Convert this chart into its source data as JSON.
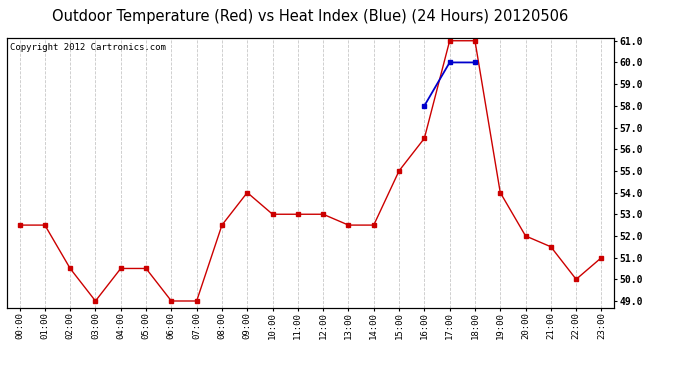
{
  "title": "Outdoor Temperature (Red) vs Heat Index (Blue) (24 Hours) 20120506",
  "copyright": "Copyright 2012 Cartronics.com",
  "x_labels": [
    "00:00",
    "01:00",
    "02:00",
    "03:00",
    "04:00",
    "05:00",
    "06:00",
    "07:00",
    "08:00",
    "09:00",
    "10:00",
    "11:00",
    "12:00",
    "13:00",
    "14:00",
    "15:00",
    "16:00",
    "17:00",
    "18:00",
    "19:00",
    "20:00",
    "21:00",
    "22:00",
    "23:00"
  ],
  "temp_red": [
    52.5,
    52.5,
    50.5,
    49.0,
    50.5,
    50.5,
    49.0,
    49.0,
    52.5,
    54.0,
    53.0,
    53.0,
    53.0,
    52.5,
    52.5,
    55.0,
    56.5,
    61.0,
    61.0,
    54.0,
    52.0,
    51.5,
    50.0,
    51.0
  ],
  "heat_blue": [
    null,
    null,
    null,
    null,
    null,
    null,
    null,
    null,
    null,
    null,
    null,
    null,
    null,
    null,
    null,
    null,
    58.0,
    60.0,
    60.0,
    null,
    null,
    null,
    null,
    null
  ],
  "ylim_min": 49.0,
  "ylim_max": 61.0,
  "yticks": [
    49.0,
    50.0,
    51.0,
    52.0,
    53.0,
    54.0,
    55.0,
    56.0,
    57.0,
    58.0,
    59.0,
    60.0,
    61.0
  ],
  "bg_color": "#ffffff",
  "grid_color": "#c8c8c8",
  "red_color": "#cc0000",
  "blue_color": "#0000cc",
  "title_fontsize": 10.5,
  "copyright_fontsize": 6.5,
  "tick_fontsize": 7.0,
  "xlabel_fontsize": 6.5
}
